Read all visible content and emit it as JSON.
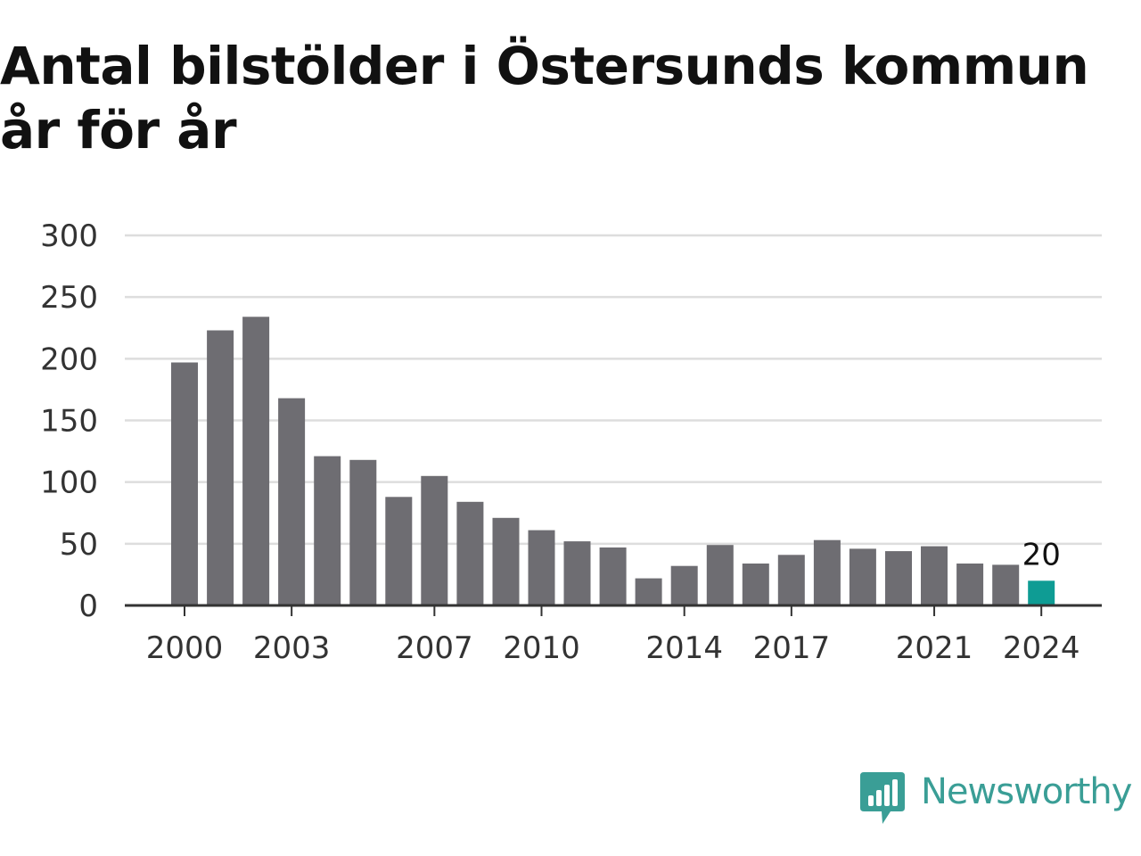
{
  "chart_data": {
    "type": "bar",
    "title": "Antal bilstölder i Östersunds kommun år för år",
    "xlabel": "",
    "ylabel": "",
    "ylim": [
      0,
      300
    ],
    "yticks": [
      "0",
      "50",
      "100",
      "150",
      "200",
      "250",
      "300"
    ],
    "xtick_labels": [
      "2000",
      "2003",
      "2007",
      "2010",
      "2014",
      "2017",
      "2021",
      "2024"
    ],
    "categories": [
      "2000",
      "2001",
      "2002",
      "2003",
      "2004",
      "2005",
      "2006",
      "2007",
      "2008",
      "2009",
      "2010",
      "2011",
      "2012",
      "2013",
      "2014",
      "2015",
      "2016",
      "2017",
      "2018",
      "2019",
      "2020",
      "2021",
      "2022",
      "2023",
      "2024"
    ],
    "values": [
      197,
      223,
      234,
      168,
      121,
      118,
      88,
      105,
      84,
      71,
      61,
      52,
      47,
      22,
      32,
      49,
      34,
      41,
      53,
      46,
      44,
      48,
      34,
      33,
      20
    ],
    "highlight": {
      "category": "2024",
      "label": "20"
    },
    "grid": true,
    "colors": {
      "bar": "#6e6d72",
      "highlight": "#0e9c94",
      "grid": "#dddddd",
      "axis": "#333333"
    }
  },
  "brand": {
    "name": "Newsworthy",
    "color": "#3a9e96",
    "icon": "newsworthy-logo-icon"
  }
}
